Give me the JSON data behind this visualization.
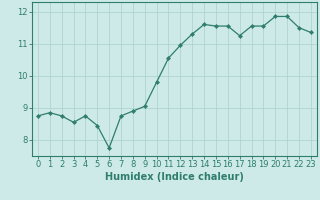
{
  "title": "",
  "xlabel": "Humidex (Indice chaleur)",
  "ylabel": "",
  "x_values": [
    0,
    1,
    2,
    3,
    4,
    5,
    6,
    7,
    8,
    9,
    10,
    11,
    12,
    13,
    14,
    15,
    16,
    17,
    18,
    19,
    20,
    21,
    22,
    23
  ],
  "y_values": [
    8.75,
    8.85,
    8.75,
    8.55,
    8.75,
    8.45,
    7.75,
    8.75,
    8.9,
    9.05,
    9.8,
    10.55,
    10.95,
    11.3,
    11.6,
    11.55,
    11.55,
    11.25,
    11.55,
    11.55,
    11.85,
    11.85,
    11.5,
    11.35
  ],
  "line_color": "#2e7d6e",
  "marker": "D",
  "marker_size": 2.2,
  "bg_color": "#ceeae8",
  "grid_color": "#aed4d0",
  "axis_color": "#2e7d6e",
  "tick_label_color": "#2e7d6e",
  "label_color": "#2e7d6e",
  "ylim": [
    7.5,
    12.3
  ],
  "xlim": [
    -0.5,
    23.5
  ],
  "yticks": [
    8,
    9,
    10,
    11,
    12
  ],
  "tick_fontsize": 6.0,
  "xlabel_fontsize": 7.0,
  "xlabel_fontweight": "bold"
}
